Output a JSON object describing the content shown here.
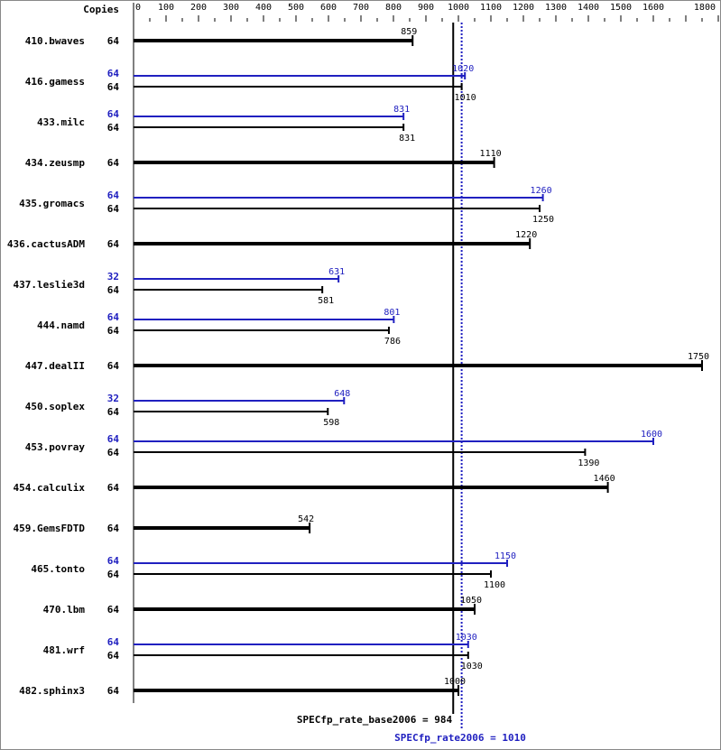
{
  "chart_data": {
    "type": "bar",
    "orientation": "horizontal",
    "copies_header": "Copies",
    "xlim": [
      0,
      1800
    ],
    "ticks": [
      0,
      100,
      200,
      300,
      400,
      500,
      600,
      700,
      800,
      900,
      1000,
      1100,
      1200,
      1300,
      1400,
      1500,
      1600,
      1800
    ],
    "colors": {
      "base": "#000000",
      "peak": "#2020c0"
    },
    "benchmarks": [
      {
        "name": "410.bwaves",
        "base_copies": "64",
        "base": 859
      },
      {
        "name": "416.gamess",
        "peak_copies": "64",
        "peak": 1020,
        "base_copies": "64",
        "base": 1010
      },
      {
        "name": "433.milc",
        "peak_copies": "64",
        "peak": 831,
        "base_copies": "64",
        "base": 831
      },
      {
        "name": "434.zeusmp",
        "base_copies": "64",
        "base": 1110
      },
      {
        "name": "435.gromacs",
        "peak_copies": "64",
        "peak": 1260,
        "base_copies": "64",
        "base": 1250
      },
      {
        "name": "436.cactusADM",
        "base_copies": "64",
        "base": 1220
      },
      {
        "name": "437.leslie3d",
        "peak_copies": "32",
        "peak": 631,
        "base_copies": "64",
        "base": 581
      },
      {
        "name": "444.namd",
        "peak_copies": "64",
        "peak": 801,
        "base_copies": "64",
        "base": 786
      },
      {
        "name": "447.dealII",
        "base_copies": "64",
        "base": 1750
      },
      {
        "name": "450.soplex",
        "peak_copies": "32",
        "peak": 648,
        "base_copies": "64",
        "base": 598
      },
      {
        "name": "453.povray",
        "peak_copies": "64",
        "peak": 1600,
        "base_copies": "64",
        "base": 1390
      },
      {
        "name": "454.calculix",
        "base_copies": "64",
        "base": 1460
      },
      {
        "name": "459.GemsFDTD",
        "base_copies": "64",
        "base": 542
      },
      {
        "name": "465.tonto",
        "peak_copies": "64",
        "peak": 1150,
        "base_copies": "64",
        "base": 1100
      },
      {
        "name": "470.lbm",
        "base_copies": "64",
        "base": 1050
      },
      {
        "name": "481.wrf",
        "peak_copies": "64",
        "peak": 1030,
        "base_copies": "64",
        "base": 1030
      },
      {
        "name": "482.sphinx3",
        "base_copies": "64",
        "base": 1000
      }
    ],
    "summary": {
      "base_value": 984,
      "base_label": "SPECfp_rate_base2006 = 984",
      "peak_value": 1010,
      "peak_label": "SPECfp_rate2006 = 1010"
    }
  }
}
